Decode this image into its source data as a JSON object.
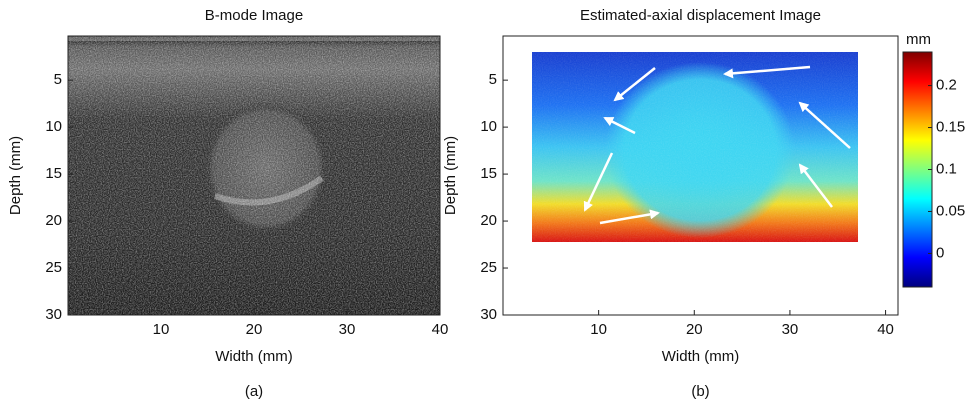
{
  "chart_data": [
    {
      "type": "image",
      "title": "B-mode Image",
      "xlabel": "Width (mm)",
      "ylabel": "Depth (mm)",
      "caption": "(a)",
      "xlim": [
        0,
        40
      ],
      "xticks": [
        10,
        20,
        30,
        40
      ],
      "ylim": [
        0.3,
        30
      ],
      "yticks": [
        5,
        10,
        15,
        20,
        25,
        30
      ],
      "y_reversed": true
    },
    {
      "type": "image",
      "title": "Estimated-axial displacement Image",
      "xlabel": "Width (mm)",
      "ylabel": "Depth (mm)",
      "caption": "(b)",
      "xlim": [
        0,
        41.3
      ],
      "xticks": [
        10,
        20,
        30,
        40
      ],
      "ylim": [
        0.3,
        30
      ],
      "yticks": [
        5,
        10,
        15,
        20,
        25,
        30
      ],
      "y_reversed": true,
      "colormap": "jet",
      "colorbar": {
        "label": "mm",
        "lim": [
          -0.04,
          0.24
        ],
        "ticks": [
          0,
          0.05,
          0.1,
          0.15,
          0.2
        ]
      }
    }
  ]
}
